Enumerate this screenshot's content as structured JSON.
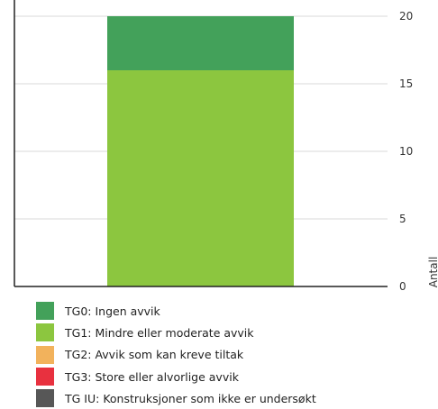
{
  "chart_data": {
    "type": "bar",
    "stacked": true,
    "categories": [
      ""
    ],
    "series": [
      {
        "name": "TG1: Mindre eller moderate avvik",
        "values": [
          16
        ],
        "color": "#8cc63f"
      },
      {
        "name": "TG0: Ingen avvik",
        "values": [
          4
        ],
        "color": "#43a15a"
      }
    ],
    "ylabel": "Antall",
    "yticks": [
      0,
      5,
      10,
      15,
      20
    ],
    "ylim": [
      0,
      20
    ],
    "grid": true,
    "y_axis_side": "right",
    "legend_position": "bottom-left"
  },
  "legend": [
    {
      "label": "TG0: Ingen avvik",
      "color": "#43a15a"
    },
    {
      "label": "TG1: Mindre eller moderate avvik",
      "color": "#8cc63f"
    },
    {
      "label": "TG2: Avvik som kan kreve tiltak",
      "color": "#f2b25c"
    },
    {
      "label": "TG3: Store eller alvorlige avvik",
      "color": "#e8313f"
    },
    {
      "label": "TG IU: Konstruksjoner som ikke er undersøkt",
      "color": "#575757"
    }
  ]
}
